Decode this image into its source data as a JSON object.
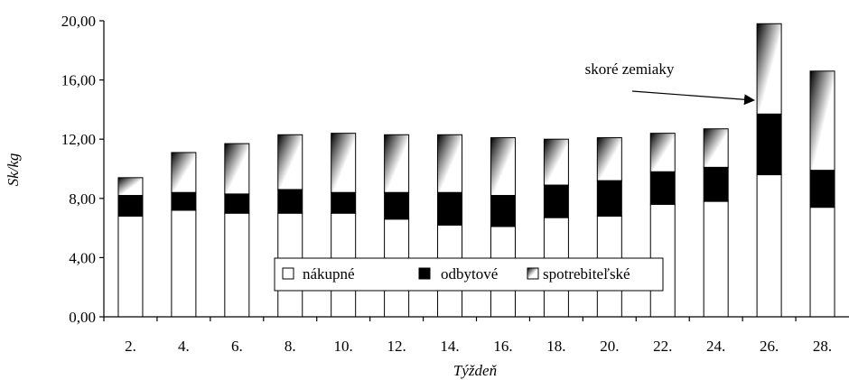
{
  "chart_data": {
    "type": "bar",
    "stacked": true,
    "categories": [
      "2.",
      "4.",
      "6.",
      "8.",
      "10.",
      "12.",
      "14.",
      "16.",
      "18.",
      "20.",
      "22.",
      "24.",
      "26.",
      "28."
    ],
    "xlabel": "Týždeň",
    "ylabel": "Sk/kg",
    "ylim": [
      0,
      20
    ],
    "yticks": [
      "0,00",
      "4,00",
      "8,00",
      "12,00",
      "16,00",
      "20,00"
    ],
    "grid": false,
    "legend_position": "bottom-center",
    "series": [
      {
        "name": "nákupné",
        "color": "#ffffff",
        "values": [
          6.8,
          7.2,
          7.0,
          7.0,
          7.0,
          6.6,
          6.2,
          6.1,
          6.7,
          6.8,
          7.6,
          7.8,
          9.6,
          7.4
        ]
      },
      {
        "name": "odbytové",
        "color": "#000000",
        "values": [
          1.4,
          1.2,
          1.3,
          1.6,
          1.4,
          1.8,
          2.2,
          2.1,
          2.2,
          2.4,
          2.2,
          2.3,
          4.1,
          2.5
        ]
      },
      {
        "name": "spotrebiteľské",
        "color": "gradient-black-white",
        "values": [
          1.2,
          2.7,
          3.4,
          3.7,
          4.0,
          3.9,
          3.9,
          3.9,
          3.1,
          2.9,
          2.6,
          2.6,
          6.1,
          6.7
        ]
      }
    ],
    "annotations": [
      {
        "text": "skoré zemiaky",
        "target_category": "26."
      }
    ]
  }
}
